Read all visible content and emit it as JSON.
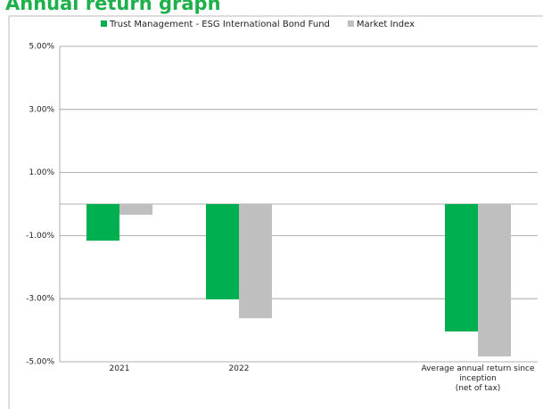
{
  "chart_data": {
    "type": "bar",
    "title": "Annual return graph",
    "categories": [
      "2021",
      "2022",
      null,
      "Average annual return since\ninception\n(net of tax)"
    ],
    "series": [
      {
        "name": "Trust Management - ESG International Bond Fund",
        "color": "#00b050",
        "values": [
          -1.16,
          -3.02,
          null,
          -4.04
        ]
      },
      {
        "name": "Market Index",
        "color": "#bfbfbf",
        "values": [
          -0.34,
          -3.62,
          null,
          -4.83
        ]
      }
    ],
    "ylim": [
      -5,
      5
    ],
    "yticks": [
      {
        "value": 5,
        "label": "5.00%"
      },
      {
        "value": 3,
        "label": "3.00%"
      },
      {
        "value": 1,
        "label": "1.00%"
      },
      {
        "value": -1,
        "label": "-1.00%"
      },
      {
        "value": -3,
        "label": "-3.00%"
      },
      {
        "value": -5,
        "label": "-5.00%"
      }
    ],
    "grid": true,
    "legend": "top"
  }
}
